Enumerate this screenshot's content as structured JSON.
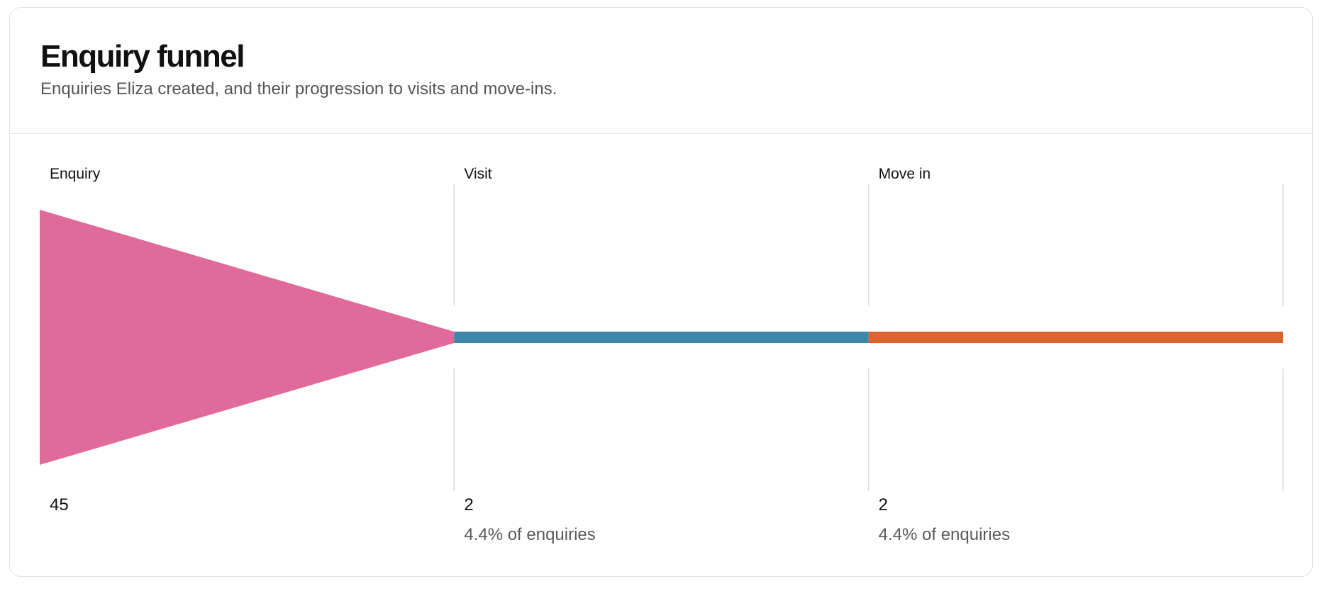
{
  "card": {
    "title": "Enquiry funnel",
    "subtitle": "Enquiries Eliza created, and their progression to visits and move-ins."
  },
  "chart_data": {
    "type": "funnel",
    "title": "Enquiry funnel",
    "subtitle": "Enquiries Eliza created, and their progression to visits and move-ins.",
    "stages": [
      {
        "label": "Enquiry",
        "value": 45,
        "value_text": "45",
        "percent_text": "",
        "color": "#e06a99"
      },
      {
        "label": "Visit",
        "value": 2,
        "value_text": "2",
        "percent_text": "4.4% of enquiries",
        "color": "#3d87a8"
      },
      {
        "label": "Move in",
        "value": 2,
        "value_text": "2",
        "percent_text": "4.4% of enquiries",
        "color": "#d9652f"
      }
    ],
    "gridline_color": "#dcdcdc"
  }
}
